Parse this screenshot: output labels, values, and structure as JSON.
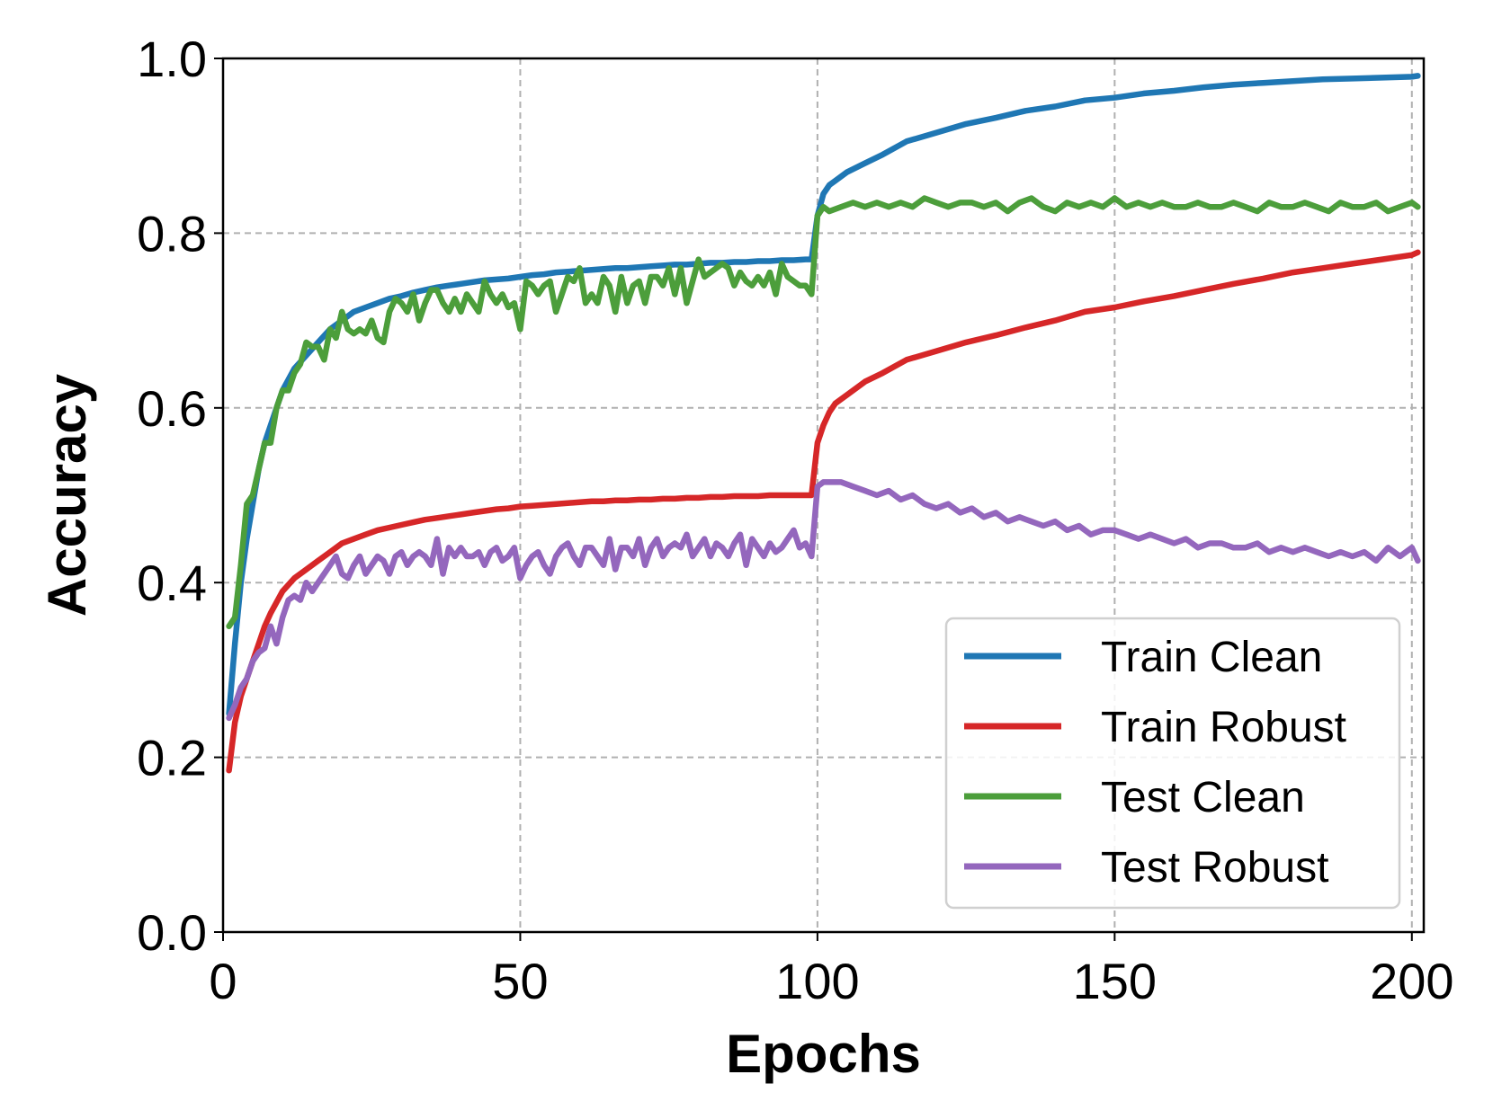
{
  "chart_data": {
    "type": "line",
    "title": "",
    "xlabel": "Epochs",
    "ylabel": "Accuracy",
    "xlim": [
      0,
      202
    ],
    "ylim": [
      0.0,
      1.0
    ],
    "xticks": [
      0,
      50,
      100,
      150,
      200
    ],
    "xtick_labels": [
      "0",
      "50",
      "100",
      "150",
      "200"
    ],
    "yticks": [
      0.0,
      0.2,
      0.4,
      0.6,
      0.8,
      1.0
    ],
    "ytick_labels": [
      "0.0",
      "0.2",
      "0.4",
      "0.6",
      "0.8",
      "1.0"
    ],
    "grid": true,
    "legend_position": "lower-right",
    "series": [
      {
        "name": "Train Clean",
        "color": "#1f77b4",
        "x": [
          1,
          2,
          3,
          4,
          5,
          6,
          7,
          8,
          10,
          12,
          14,
          16,
          18,
          20,
          22,
          24,
          26,
          28,
          30,
          32,
          34,
          36,
          38,
          40,
          42,
          44,
          46,
          48,
          50,
          52,
          54,
          56,
          58,
          60,
          62,
          64,
          66,
          68,
          70,
          72,
          74,
          76,
          78,
          80,
          82,
          84,
          86,
          88,
          90,
          92,
          94,
          96,
          98,
          99,
          100,
          101,
          102,
          103,
          105,
          108,
          111,
          115,
          120,
          125,
          130,
          135,
          140,
          145,
          150,
          155,
          160,
          165,
          170,
          175,
          180,
          185,
          190,
          195,
          200,
          201
        ],
        "y": [
          0.25,
          0.33,
          0.4,
          0.45,
          0.49,
          0.53,
          0.56,
          0.58,
          0.62,
          0.645,
          0.66,
          0.675,
          0.69,
          0.7,
          0.71,
          0.715,
          0.72,
          0.725,
          0.728,
          0.732,
          0.735,
          0.738,
          0.74,
          0.742,
          0.744,
          0.746,
          0.747,
          0.748,
          0.75,
          0.752,
          0.753,
          0.755,
          0.756,
          0.757,
          0.758,
          0.759,
          0.76,
          0.76,
          0.761,
          0.762,
          0.763,
          0.764,
          0.764,
          0.765,
          0.766,
          0.766,
          0.767,
          0.767,
          0.768,
          0.768,
          0.769,
          0.769,
          0.77,
          0.77,
          0.82,
          0.845,
          0.855,
          0.86,
          0.87,
          0.88,
          0.89,
          0.905,
          0.915,
          0.925,
          0.932,
          0.94,
          0.945,
          0.952,
          0.955,
          0.96,
          0.963,
          0.967,
          0.97,
          0.972,
          0.974,
          0.976,
          0.977,
          0.978,
          0.979,
          0.98
        ]
      },
      {
        "name": "Train Robust",
        "color": "#d62728",
        "x": [
          1,
          2,
          3,
          4,
          5,
          6,
          7,
          8,
          10,
          12,
          14,
          16,
          18,
          20,
          22,
          24,
          26,
          28,
          30,
          32,
          34,
          36,
          38,
          40,
          42,
          44,
          46,
          48,
          50,
          52,
          54,
          56,
          58,
          60,
          62,
          64,
          66,
          68,
          70,
          72,
          74,
          76,
          78,
          80,
          82,
          84,
          86,
          88,
          90,
          92,
          94,
          96,
          98,
          99,
          100,
          101,
          102,
          103,
          105,
          108,
          111,
          115,
          120,
          125,
          130,
          135,
          140,
          145,
          150,
          155,
          160,
          165,
          170,
          175,
          180,
          185,
          190,
          195,
          200,
          201
        ],
        "y": [
          0.185,
          0.24,
          0.27,
          0.29,
          0.31,
          0.33,
          0.35,
          0.365,
          0.39,
          0.405,
          0.415,
          0.425,
          0.435,
          0.445,
          0.45,
          0.455,
          0.46,
          0.463,
          0.466,
          0.469,
          0.472,
          0.474,
          0.476,
          0.478,
          0.48,
          0.482,
          0.484,
          0.485,
          0.487,
          0.488,
          0.489,
          0.49,
          0.491,
          0.492,
          0.493,
          0.493,
          0.494,
          0.494,
          0.495,
          0.495,
          0.496,
          0.496,
          0.497,
          0.497,
          0.498,
          0.498,
          0.499,
          0.499,
          0.499,
          0.5,
          0.5,
          0.5,
          0.5,
          0.5,
          0.56,
          0.58,
          0.595,
          0.605,
          0.615,
          0.63,
          0.64,
          0.655,
          0.665,
          0.675,
          0.683,
          0.692,
          0.7,
          0.71,
          0.715,
          0.722,
          0.728,
          0.735,
          0.742,
          0.748,
          0.755,
          0.76,
          0.765,
          0.77,
          0.775,
          0.778
        ]
      },
      {
        "name": "Test Clean",
        "color": "#4c9e3b",
        "x": [
          1,
          2,
          3,
          4,
          5,
          6,
          7,
          8,
          9,
          10,
          11,
          12,
          13,
          14,
          15,
          16,
          17,
          18,
          19,
          20,
          21,
          22,
          23,
          24,
          25,
          26,
          27,
          28,
          29,
          30,
          31,
          32,
          33,
          34,
          35,
          36,
          37,
          38,
          39,
          40,
          41,
          42,
          43,
          44,
          45,
          46,
          47,
          48,
          49,
          50,
          51,
          52,
          53,
          54,
          55,
          56,
          57,
          58,
          59,
          60,
          61,
          62,
          63,
          64,
          65,
          66,
          67,
          68,
          69,
          70,
          71,
          72,
          73,
          74,
          75,
          76,
          77,
          78,
          79,
          80,
          81,
          82,
          83,
          84,
          85,
          86,
          87,
          88,
          89,
          90,
          91,
          92,
          93,
          94,
          95,
          96,
          97,
          98,
          99,
          100,
          101,
          102,
          104,
          106,
          108,
          110,
          112,
          114,
          116,
          118,
          120,
          122,
          124,
          126,
          128,
          130,
          132,
          134,
          136,
          138,
          140,
          142,
          144,
          146,
          148,
          150,
          152,
          154,
          156,
          158,
          160,
          162,
          164,
          166,
          168,
          170,
          172,
          174,
          176,
          178,
          180,
          182,
          184,
          186,
          188,
          190,
          192,
          194,
          196,
          198,
          200,
          201
        ],
        "y": [
          0.35,
          0.36,
          0.42,
          0.49,
          0.5,
          0.53,
          0.56,
          0.56,
          0.6,
          0.62,
          0.62,
          0.64,
          0.65,
          0.675,
          0.67,
          0.67,
          0.655,
          0.69,
          0.68,
          0.71,
          0.69,
          0.685,
          0.69,
          0.685,
          0.7,
          0.68,
          0.675,
          0.71,
          0.725,
          0.72,
          0.71,
          0.73,
          0.7,
          0.72,
          0.735,
          0.735,
          0.72,
          0.71,
          0.725,
          0.71,
          0.73,
          0.72,
          0.71,
          0.745,
          0.73,
          0.72,
          0.73,
          0.715,
          0.72,
          0.69,
          0.745,
          0.74,
          0.73,
          0.74,
          0.745,
          0.71,
          0.73,
          0.75,
          0.745,
          0.76,
          0.72,
          0.73,
          0.72,
          0.75,
          0.74,
          0.71,
          0.75,
          0.72,
          0.74,
          0.745,
          0.72,
          0.75,
          0.75,
          0.74,
          0.76,
          0.73,
          0.76,
          0.72,
          0.745,
          0.77,
          0.75,
          0.755,
          0.76,
          0.765,
          0.76,
          0.74,
          0.755,
          0.745,
          0.74,
          0.75,
          0.74,
          0.755,
          0.73,
          0.765,
          0.75,
          0.745,
          0.74,
          0.74,
          0.73,
          0.82,
          0.83,
          0.825,
          0.83,
          0.835,
          0.83,
          0.835,
          0.83,
          0.835,
          0.83,
          0.84,
          0.835,
          0.83,
          0.835,
          0.835,
          0.83,
          0.835,
          0.825,
          0.835,
          0.84,
          0.83,
          0.825,
          0.835,
          0.83,
          0.835,
          0.83,
          0.84,
          0.83,
          0.835,
          0.83,
          0.835,
          0.83,
          0.83,
          0.835,
          0.83,
          0.83,
          0.835,
          0.83,
          0.825,
          0.835,
          0.83,
          0.83,
          0.835,
          0.83,
          0.825,
          0.835,
          0.83,
          0.83,
          0.835,
          0.825,
          0.83,
          0.835,
          0.83
        ]
      },
      {
        "name": "Test Robust",
        "color": "#9467bd",
        "x": [
          1,
          2,
          3,
          4,
          5,
          6,
          7,
          8,
          9,
          10,
          11,
          12,
          13,
          14,
          15,
          16,
          17,
          18,
          19,
          20,
          21,
          22,
          23,
          24,
          25,
          26,
          27,
          28,
          29,
          30,
          31,
          32,
          33,
          34,
          35,
          36,
          37,
          38,
          39,
          40,
          41,
          42,
          43,
          44,
          45,
          46,
          47,
          48,
          49,
          50,
          51,
          52,
          53,
          54,
          55,
          56,
          57,
          58,
          59,
          60,
          61,
          62,
          63,
          64,
          65,
          66,
          67,
          68,
          69,
          70,
          71,
          72,
          73,
          74,
          75,
          76,
          77,
          78,
          79,
          80,
          81,
          82,
          83,
          84,
          85,
          86,
          87,
          88,
          89,
          90,
          91,
          92,
          93,
          94,
          95,
          96,
          97,
          98,
          99,
          100,
          101,
          102,
          104,
          106,
          108,
          110,
          112,
          114,
          116,
          118,
          120,
          122,
          124,
          126,
          128,
          130,
          132,
          134,
          136,
          138,
          140,
          142,
          144,
          146,
          148,
          150,
          152,
          154,
          156,
          158,
          160,
          162,
          164,
          166,
          168,
          170,
          172,
          174,
          176,
          178,
          180,
          182,
          184,
          186,
          188,
          190,
          192,
          194,
          196,
          198,
          200,
          201
        ],
        "y": [
          0.245,
          0.26,
          0.28,
          0.29,
          0.31,
          0.32,
          0.325,
          0.35,
          0.33,
          0.36,
          0.38,
          0.385,
          0.38,
          0.4,
          0.39,
          0.4,
          0.41,
          0.42,
          0.43,
          0.41,
          0.405,
          0.42,
          0.43,
          0.41,
          0.42,
          0.43,
          0.425,
          0.41,
          0.43,
          0.435,
          0.42,
          0.43,
          0.435,
          0.43,
          0.42,
          0.45,
          0.41,
          0.44,
          0.43,
          0.44,
          0.43,
          0.43,
          0.435,
          0.42,
          0.435,
          0.44,
          0.425,
          0.43,
          0.44,
          0.405,
          0.42,
          0.43,
          0.435,
          0.42,
          0.41,
          0.43,
          0.44,
          0.445,
          0.43,
          0.42,
          0.44,
          0.44,
          0.43,
          0.42,
          0.45,
          0.415,
          0.44,
          0.44,
          0.43,
          0.45,
          0.42,
          0.44,
          0.45,
          0.43,
          0.44,
          0.445,
          0.44,
          0.455,
          0.43,
          0.44,
          0.45,
          0.43,
          0.445,
          0.44,
          0.43,
          0.445,
          0.455,
          0.42,
          0.45,
          0.44,
          0.43,
          0.445,
          0.435,
          0.44,
          0.45,
          0.46,
          0.44,
          0.445,
          0.43,
          0.51,
          0.515,
          0.515,
          0.515,
          0.51,
          0.505,
          0.5,
          0.505,
          0.495,
          0.5,
          0.49,
          0.485,
          0.49,
          0.48,
          0.485,
          0.475,
          0.48,
          0.47,
          0.475,
          0.47,
          0.465,
          0.47,
          0.46,
          0.465,
          0.455,
          0.46,
          0.46,
          0.455,
          0.45,
          0.455,
          0.45,
          0.445,
          0.45,
          0.44,
          0.445,
          0.445,
          0.44,
          0.44,
          0.445,
          0.435,
          0.44,
          0.435,
          0.44,
          0.435,
          0.43,
          0.435,
          0.43,
          0.435,
          0.425,
          0.44,
          0.43,
          0.44,
          0.425
        ]
      }
    ]
  }
}
